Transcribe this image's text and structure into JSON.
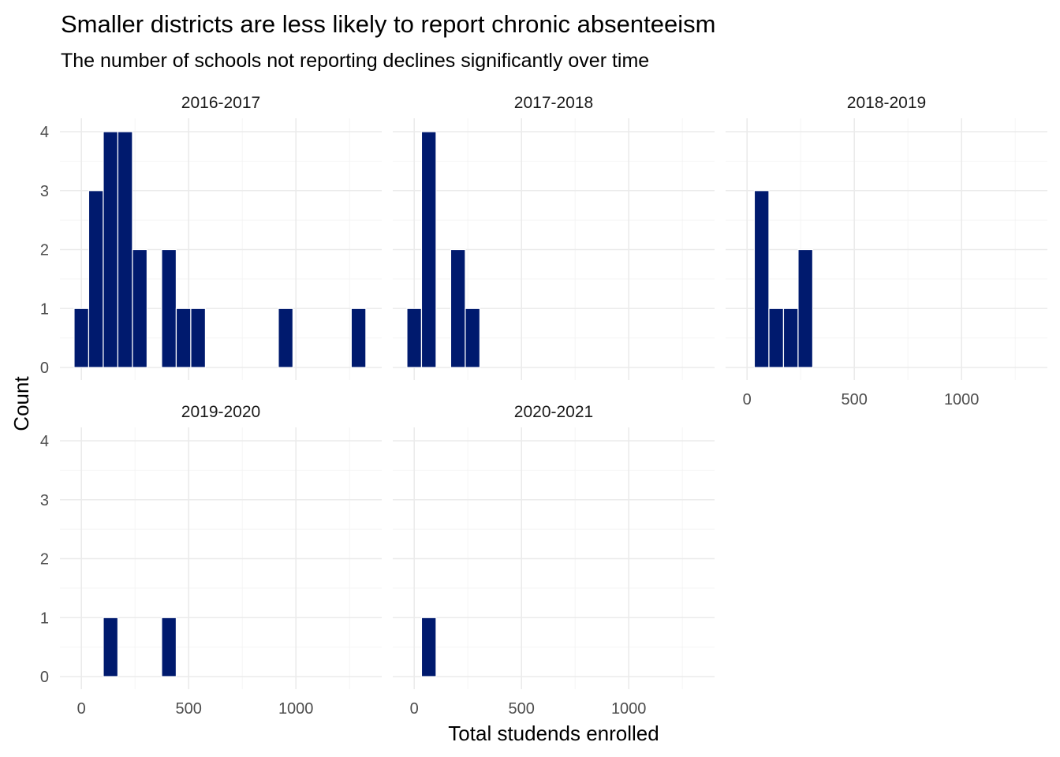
{
  "chart_data": {
    "type": "bar",
    "title": "Smaller districts are less likely to report chronic absenteeism",
    "subtitle": "The number of schools not reporting declines significantly over time",
    "xlabel": "Total studends enrolled",
    "ylabel": "Count",
    "xlim": [
      -100,
      1400
    ],
    "ylim": [
      0,
      4
    ],
    "x_ticks": [
      0,
      500,
      1000
    ],
    "x_tick_labels": [
      "0",
      "500",
      "1000"
    ],
    "y_ticks": [
      0,
      1,
      2,
      3,
      4
    ],
    "y_tick_labels": [
      "0",
      "1",
      "2",
      "3",
      "4"
    ],
    "bin_width": 68,
    "bar_color": "#001a6e",
    "panels": [
      {
        "label": "2016-2017",
        "bins": [
          {
            "x": 0,
            "count": 1
          },
          {
            "x": 68,
            "count": 3
          },
          {
            "x": 136,
            "count": 4
          },
          {
            "x": 204,
            "count": 4
          },
          {
            "x": 272,
            "count": 2
          },
          {
            "x": 340,
            "count": 0
          },
          {
            "x": 408,
            "count": 2
          },
          {
            "x": 476,
            "count": 1
          },
          {
            "x": 544,
            "count": 1
          },
          {
            "x": 612,
            "count": 0
          },
          {
            "x": 680,
            "count": 0
          },
          {
            "x": 748,
            "count": 0
          },
          {
            "x": 816,
            "count": 0
          },
          {
            "x": 884,
            "count": 0
          },
          {
            "x": 952,
            "count": 1
          },
          {
            "x": 1020,
            "count": 0
          },
          {
            "x": 1088,
            "count": 0
          },
          {
            "x": 1156,
            "count": 0
          },
          {
            "x": 1224,
            "count": 0
          },
          {
            "x": 1292,
            "count": 1
          }
        ]
      },
      {
        "label": "2017-2018",
        "bins": [
          {
            "x": 0,
            "count": 1
          },
          {
            "x": 68,
            "count": 4
          },
          {
            "x": 136,
            "count": 0
          },
          {
            "x": 204,
            "count": 2
          },
          {
            "x": 272,
            "count": 1
          }
        ]
      },
      {
        "label": "2018-2019",
        "bins": [
          {
            "x": 68,
            "count": 3
          },
          {
            "x": 136,
            "count": 1
          },
          {
            "x": 204,
            "count": 1
          },
          {
            "x": 272,
            "count": 2
          }
        ]
      },
      {
        "label": "2019-2020",
        "bins": [
          {
            "x": 136,
            "count": 1
          },
          {
            "x": 408,
            "count": 1
          }
        ]
      },
      {
        "label": "2020-2021",
        "bins": [
          {
            "x": 68,
            "count": 1
          }
        ]
      }
    ]
  }
}
